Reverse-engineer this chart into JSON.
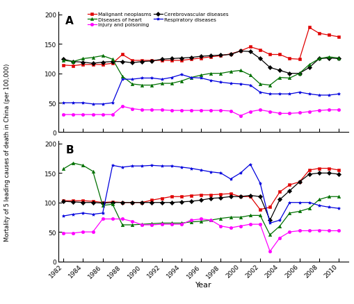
{
  "years": [
    1982,
    1983,
    1984,
    1985,
    1986,
    1987,
    1988,
    1989,
    1990,
    1991,
    1992,
    1993,
    1994,
    1995,
    1996,
    1997,
    1998,
    1999,
    2000,
    2001,
    2002,
    2003,
    2004,
    2005,
    2006,
    2007,
    2008,
    2009,
    2010
  ],
  "panel_A": {
    "malignant_neoplasms": [
      114,
      113,
      115,
      115,
      115,
      117,
      132,
      122,
      122,
      122,
      122,
      122,
      122,
      124,
      126,
      128,
      130,
      133,
      138,
      145,
      140,
      132,
      132,
      125,
      124,
      178,
      168,
      165,
      162
    ],
    "cerebrovascular_diseases": [
      124,
      120,
      119,
      117,
      119,
      120,
      120,
      118,
      120,
      121,
      124,
      125,
      126,
      127,
      129,
      130,
      131,
      132,
      138,
      137,
      125,
      110,
      105,
      100,
      100,
      110,
      125,
      126,
      125
    ],
    "diseases_of_heart": [
      122,
      120,
      125,
      127,
      130,
      124,
      95,
      82,
      80,
      80,
      83,
      83,
      87,
      93,
      97,
      100,
      100,
      103,
      105,
      97,
      82,
      80,
      93,
      92,
      100,
      115,
      125,
      128,
      126
    ],
    "respiratory_diseases": [
      50,
      50,
      50,
      48,
      48,
      50,
      90,
      90,
      92,
      92,
      90,
      93,
      98,
      93,
      92,
      88,
      85,
      83,
      82,
      80,
      68,
      65,
      65,
      65,
      68,
      65,
      63,
      63,
      65
    ],
    "injury_and_poisoning": [
      30,
      30,
      30,
      30,
      30,
      30,
      44,
      40,
      38,
      38,
      38,
      37,
      37,
      37,
      37,
      37,
      37,
      36,
      28,
      35,
      38,
      35,
      32,
      32,
      33,
      35,
      37,
      38,
      38
    ]
  },
  "panel_B": {
    "malignant_neoplasms": [
      103,
      103,
      103,
      102,
      100,
      101,
      100,
      100,
      100,
      104,
      107,
      110,
      110,
      112,
      113,
      113,
      114,
      115,
      110,
      110,
      88,
      92,
      118,
      130,
      135,
      155,
      158,
      158,
      155
    ],
    "cerebrovascular_diseases": [
      102,
      101,
      100,
      100,
      99,
      100,
      100,
      100,
      100,
      100,
      100,
      100,
      101,
      102,
      104,
      107,
      108,
      110,
      110,
      112,
      110,
      70,
      105,
      120,
      135,
      148,
      150,
      150,
      148
    ],
    "diseases_of_heart": [
      157,
      167,
      163,
      153,
      95,
      97,
      62,
      62,
      63,
      64,
      65,
      65,
      65,
      67,
      68,
      70,
      73,
      75,
      75,
      78,
      78,
      45,
      60,
      82,
      85,
      90,
      105,
      110,
      110
    ],
    "respiratory_diseases": [
      77,
      80,
      82,
      80,
      82,
      163,
      160,
      162,
      162,
      163,
      162,
      162,
      160,
      158,
      155,
      152,
      150,
      140,
      150,
      165,
      133,
      65,
      70,
      100,
      100,
      100,
      95,
      92,
      90
    ],
    "injury_and_poisoning": [
      48,
      48,
      50,
      50,
      72,
      72,
      72,
      68,
      62,
      62,
      63,
      63,
      63,
      70,
      72,
      70,
      60,
      57,
      60,
      63,
      63,
      17,
      40,
      50,
      52,
      52,
      53,
      52,
      52
    ]
  },
  "colors": {
    "malignant_neoplasms": "#e00000",
    "cerebrovascular_diseases": "#000000",
    "diseases_of_heart": "#007000",
    "respiratory_diseases": "#0000dd",
    "injury_and_poisoning": "#ff00ff"
  },
  "markers": {
    "malignant_neoplasms": "s",
    "cerebrovascular_diseases": "D",
    "diseases_of_heart": "^",
    "respiratory_diseases": "*",
    "injury_and_poisoning": "o"
  },
  "legend_labels": {
    "malignant_neoplasms": "Malignant neoplasms",
    "cerebrovascular_diseases": "Cerebrovascular diseases",
    "diseases_of_heart": "Diseases of heart",
    "respiratory_diseases": "Respiratory diseases",
    "injury_and_poisoning": "Injury and poisoning"
  },
  "ylabel": "Mortality of 5 leading causes of death in China (per 100,000)",
  "xlabel": "Year",
  "ylim": [
    0,
    205
  ],
  "yticks": [
    0,
    50,
    100,
    150,
    200
  ],
  "xtick_years": [
    1982,
    1984,
    1986,
    1988,
    1990,
    1992,
    1994,
    1996,
    1998,
    2000,
    2002,
    2004,
    2006,
    2008,
    2010
  ]
}
